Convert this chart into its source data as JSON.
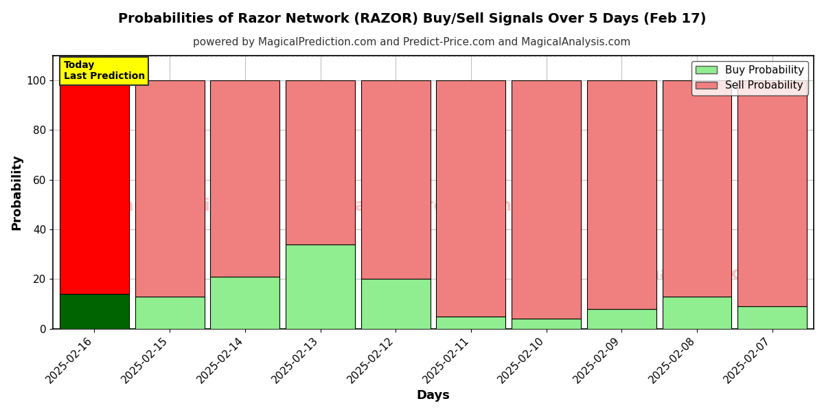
{
  "title": "Probabilities of Razor Network (RAZOR) Buy/Sell Signals Over 5 Days (Feb 17)",
  "subtitle": "powered by MagicalPrediction.com and Predict-Price.com and MagicalAnalysis.com",
  "xlabel": "Days",
  "ylabel": "Probability",
  "categories": [
    "2025-02-16",
    "2025-02-15",
    "2025-02-14",
    "2025-02-13",
    "2025-02-12",
    "2025-02-11",
    "2025-02-10",
    "2025-02-09",
    "2025-02-08",
    "2025-02-07"
  ],
  "buy_values": [
    14,
    13,
    21,
    34,
    20,
    5,
    4,
    8,
    13,
    9
  ],
  "sell_values": [
    86,
    87,
    79,
    66,
    80,
    95,
    96,
    92,
    87,
    91
  ],
  "today_buy_color": "#006400",
  "today_sell_color": "#ff0000",
  "buy_color": "#90EE90",
  "sell_color": "#F08080",
  "today_label_bg": "#ffff00",
  "today_label_text": "Today\nLast Prediction",
  "ylim": [
    0,
    110
  ],
  "yticks": [
    0,
    20,
    40,
    60,
    80,
    100
  ],
  "dashed_line_y": 110,
  "watermark_texts": [
    "calAnalysis.com",
    "MagicalPrediction.com",
    "calAnalysis.com"
  ],
  "bar_edge_color": "#000000",
  "bar_width": 0.92,
  "title_fontsize": 14,
  "subtitle_fontsize": 11,
  "axis_label_fontsize": 13,
  "tick_fontsize": 11,
  "legend_fontsize": 11
}
